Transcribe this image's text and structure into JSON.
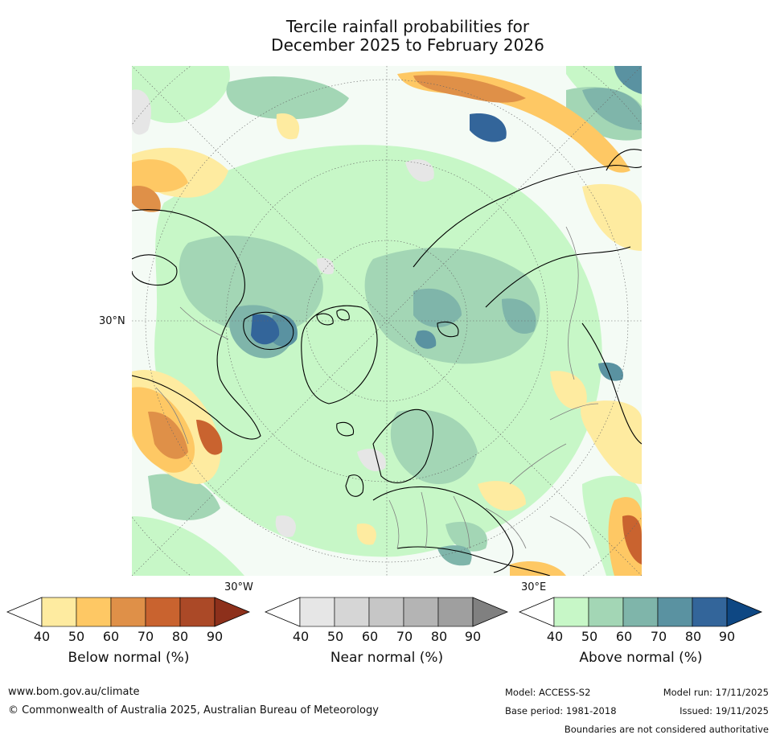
{
  "title_line1": "Tercile rainfall probabilities for",
  "title_line2": "December 2025 to February 2026",
  "map": {
    "label_30n": "30°N",
    "label_30w": "30°W",
    "label_30e": "30°E",
    "colors": {
      "ocean_base": "#f4fbf5",
      "land_outline": "#000000",
      "border": "#808080",
      "graticule": "#666666"
    }
  },
  "legend": {
    "ticks": [
      "40",
      "50",
      "60",
      "70",
      "80",
      "90"
    ],
    "below": {
      "label": "Below normal (%)",
      "colors": [
        "#ffffff",
        "#feeba0",
        "#fec864",
        "#df9048",
        "#c9632f",
        "#ab4927",
        "#8d301b"
      ]
    },
    "near": {
      "label": "Near normal (%)",
      "colors": [
        "#ffffff",
        "#e6e6e6",
        "#d6d6d6",
        "#c6c6c6",
        "#b4b4b4",
        "#9f9f9f",
        "#808080"
      ]
    },
    "above": {
      "label": "Above normal (%)",
      "colors": [
        "#ffffff",
        "#c7f7c7",
        "#a3d6b5",
        "#7fb5aa",
        "#5a92a1",
        "#33659a",
        "#0e4783"
      ]
    }
  },
  "footer": {
    "website": "www.bom.gov.au/climate",
    "copyright": "© Commonwealth of Australia 2025, Australian Bureau of Meteorology",
    "model": "Model: ACCESS-S2",
    "base_period": "Base period: 1981-2018",
    "model_run": "Model run: 17/11/2025",
    "issued": "Issued: 19/11/2025",
    "disclaimer": "Boundaries are not considered authoritative"
  }
}
